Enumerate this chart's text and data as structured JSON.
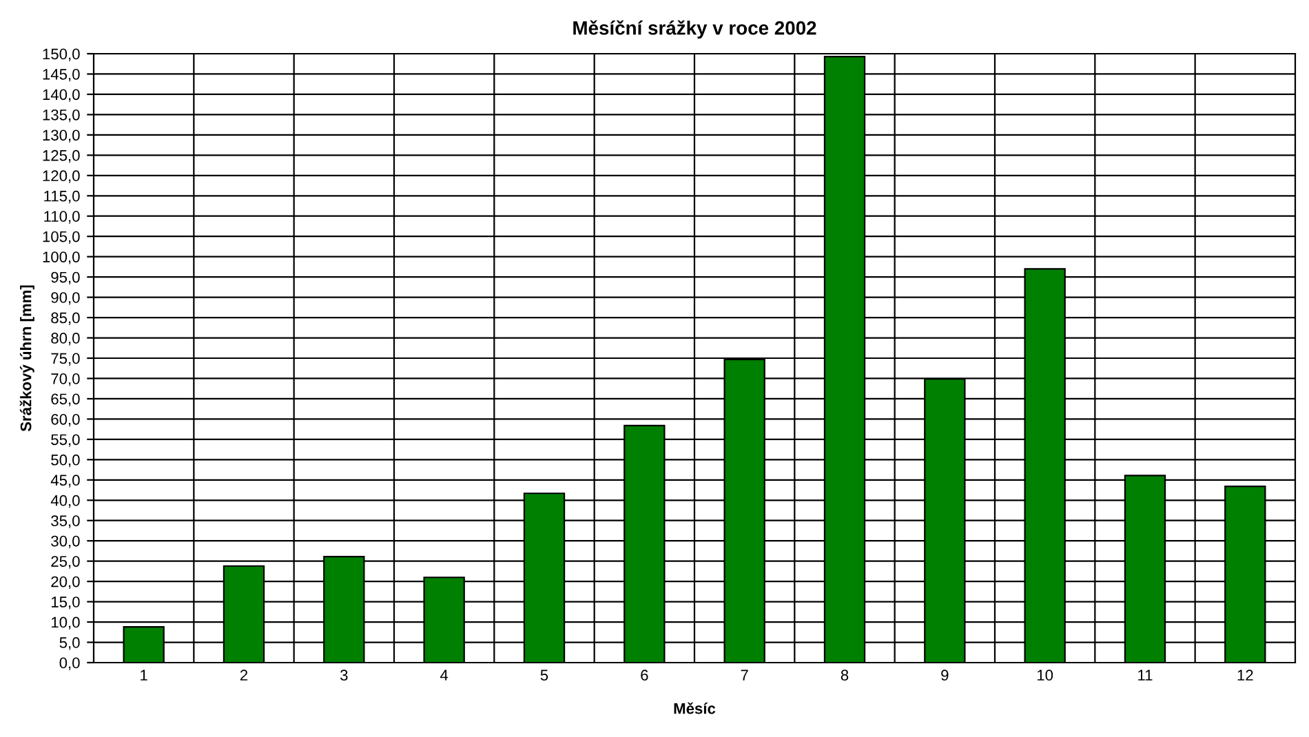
{
  "chart_data": {
    "type": "bar",
    "title": "Měsíční srážky v roce 2002",
    "xlabel": "Měsíc",
    "ylabel": "Srážkový úhrn [mm]",
    "categories": [
      "1",
      "2",
      "3",
      "4",
      "5",
      "6",
      "7",
      "8",
      "9",
      "10",
      "11",
      "12"
    ],
    "values": [
      8.8,
      23.8,
      26.1,
      21.0,
      41.7,
      58.4,
      74.7,
      149.3,
      69.9,
      97.0,
      46.1,
      43.4
    ],
    "color": "#008000",
    "ylim": [
      0,
      150
    ],
    "yticks": [
      {
        "value": 0,
        "label": "0,0"
      },
      {
        "value": 5,
        "label": "5,0"
      },
      {
        "value": 10,
        "label": "10,0"
      },
      {
        "value": 15,
        "label": "15,0"
      },
      {
        "value": 20,
        "label": "20,0"
      },
      {
        "value": 25,
        "label": "25,0"
      },
      {
        "value": 30,
        "label": "30,0"
      },
      {
        "value": 35,
        "label": "35,0"
      },
      {
        "value": 40,
        "label": "40,0"
      },
      {
        "value": 45,
        "label": "45,0"
      },
      {
        "value": 50,
        "label": "50,0"
      },
      {
        "value": 55,
        "label": "55,0"
      },
      {
        "value": 60,
        "label": "60,0"
      },
      {
        "value": 65,
        "label": "65,0"
      },
      {
        "value": 70,
        "label": "70,0"
      },
      {
        "value": 75,
        "label": "75,0"
      },
      {
        "value": 80,
        "label": "80,0"
      },
      {
        "value": 85,
        "label": "85,0"
      },
      {
        "value": 90,
        "label": "90,0"
      },
      {
        "value": 95,
        "label": "95,0"
      },
      {
        "value": 100,
        "label": "100,0"
      },
      {
        "value": 105,
        "label": "105,0"
      },
      {
        "value": 110,
        "label": "110,0"
      },
      {
        "value": 115,
        "label": "115,0"
      },
      {
        "value": 120,
        "label": "120,0"
      },
      {
        "value": 125,
        "label": "125,0"
      },
      {
        "value": 130,
        "label": "130,0"
      },
      {
        "value": 135,
        "label": "135,0"
      },
      {
        "value": 140,
        "label": "140,0"
      },
      {
        "value": 145,
        "label": "145,0"
      },
      {
        "value": 150,
        "label": "150,0"
      }
    ],
    "grid": true,
    "legend": false
  }
}
